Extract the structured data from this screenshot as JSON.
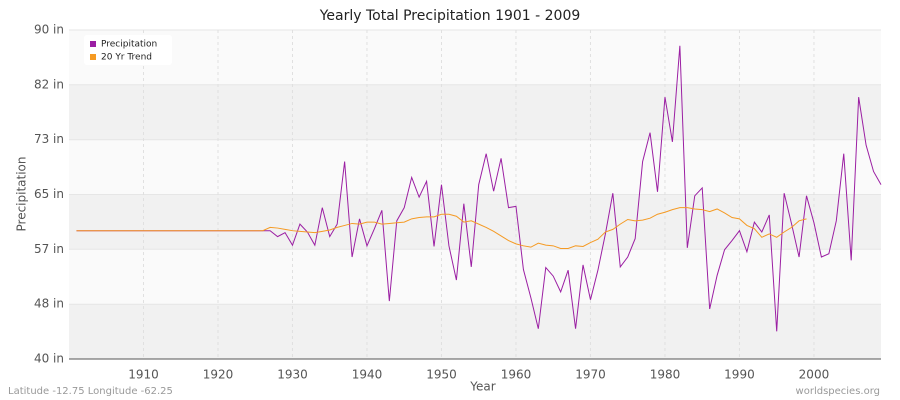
{
  "chart_data": {
    "type": "line",
    "title": "Yearly Total Precipitation 1901 - 2009",
    "x_label": "Year",
    "y_label": "Precipitation",
    "footer_left": "Latitude -12.75 Longitude -62.25",
    "footer_right": "worldspecies.org",
    "legend": "upper left",
    "grid": true,
    "xlim": [
      1900,
      2009
    ],
    "xticks": [
      1910,
      1920,
      1930,
      1940,
      1950,
      1960,
      1970,
      1980,
      1990,
      2000
    ],
    "ylim": [
      40,
      90
    ],
    "yticks": [
      {
        "value": 40,
        "label": "40 in"
      },
      {
        "value": 48.33,
        "label": "48 in"
      },
      {
        "value": 56.67,
        "label": "57 in"
      },
      {
        "value": 65,
        "label": "65 in"
      },
      {
        "value": 73.33,
        "label": "73 in"
      },
      {
        "value": 81.67,
        "label": "82 in"
      },
      {
        "value": 90,
        "label": "90 in"
      }
    ],
    "x": [
      1901,
      1902,
      1903,
      1904,
      1905,
      1906,
      1907,
      1908,
      1909,
      1910,
      1911,
      1912,
      1913,
      1914,
      1915,
      1916,
      1917,
      1918,
      1919,
      1920,
      1921,
      1922,
      1923,
      1924,
      1925,
      1926,
      1927,
      1928,
      1929,
      1930,
      1931,
      1932,
      1933,
      1934,
      1935,
      1936,
      1937,
      1938,
      1939,
      1940,
      1941,
      1942,
      1943,
      1944,
      1945,
      1946,
      1947,
      1948,
      1949,
      1950,
      1951,
      1952,
      1953,
      1954,
      1955,
      1956,
      1957,
      1958,
      1959,
      1960,
      1961,
      1962,
      1963,
      1964,
      1965,
      1966,
      1967,
      1968,
      1969,
      1970,
      1971,
      1972,
      1973,
      1974,
      1975,
      1976,
      1977,
      1978,
      1979,
      1980,
      1981,
      1982,
      1983,
      1984,
      1985,
      1986,
      1987,
      1988,
      1989,
      1990,
      1991,
      1992,
      1993,
      1994,
      1995,
      1996,
      1997,
      1998,
      1999,
      2000,
      2001,
      2002,
      2003,
      2004,
      2005,
      2006,
      2007,
      2008,
      2009
    ],
    "series": [
      {
        "name": "Precipitation",
        "color": "#9b1fa3",
        "values": [
          59.5,
          59.5,
          59.5,
          59.5,
          59.5,
          59.5,
          59.5,
          59.5,
          59.5,
          59.5,
          59.5,
          59.5,
          59.5,
          59.5,
          59.5,
          59.5,
          59.5,
          59.5,
          59.5,
          59.5,
          59.5,
          59.5,
          59.5,
          59.5,
          59.5,
          59.5,
          59.5,
          58.6,
          59.2,
          57.3,
          60.5,
          59.3,
          57.3,
          63.0,
          58.6,
          60.5,
          70.0,
          55.5,
          61.3,
          57.2,
          59.8,
          62.6,
          48.8,
          61.0,
          63.0,
          67.6,
          64.6,
          67.0,
          57.1,
          66.5,
          57.2,
          52.0,
          63.6,
          54.0,
          66.5,
          71.2,
          65.5,
          70.5,
          63.0,
          63.2,
          53.6,
          49.3,
          44.6,
          53.9,
          52.6,
          50.2,
          53.5,
          44.6,
          54.3,
          49.0,
          53.5,
          59.0,
          65.2,
          54.0,
          55.5,
          58.3,
          70.0,
          74.4,
          65.4,
          79.8,
          73.0,
          87.6,
          56.9,
          64.8,
          66.0,
          47.6,
          52.7,
          56.6,
          58.0,
          59.5,
          56.3,
          60.8,
          59.3,
          61.9,
          44.2,
          65.2,
          60.5,
          55.5,
          64.8,
          60.7,
          55.5,
          56.0,
          61.0,
          71.2,
          55.0,
          79.8,
          72.5,
          68.5,
          66.5
        ]
      },
      {
        "name": "20 Yr Trend",
        "color": "#f59a23",
        "values": [
          59.5,
          59.5,
          59.5,
          59.5,
          59.5,
          59.5,
          59.5,
          59.5,
          59.5,
          59.5,
          59.5,
          59.5,
          59.5,
          59.5,
          59.5,
          59.5,
          59.5,
          59.5,
          59.5,
          59.5,
          59.5,
          59.5,
          59.5,
          59.5,
          59.5,
          59.5,
          60.0,
          59.9,
          59.7,
          59.5,
          59.4,
          59.3,
          59.2,
          59.4,
          59.6,
          60.0,
          60.3,
          60.6,
          60.5,
          60.8,
          60.8,
          60.5,
          60.6,
          60.7,
          60.8,
          61.3,
          61.5,
          61.6,
          61.6,
          62.0,
          62.0,
          61.7,
          60.8,
          61.0,
          60.5,
          60.0,
          59.4,
          58.7,
          58.0,
          57.5,
          57.2,
          57.0,
          57.6,
          57.3,
          57.2,
          56.8,
          56.8,
          57.2,
          57.1,
          57.7,
          58.2,
          59.3,
          59.7,
          60.5,
          61.2,
          61.0,
          61.1,
          61.4,
          62.0,
          62.3,
          62.7,
          63.0,
          63.0,
          62.8,
          62.7,
          62.4,
          62.8,
          62.2,
          61.5,
          61.3,
          60.3,
          59.8,
          58.5,
          59.0,
          58.5,
          59.3,
          60.0,
          61.0,
          61.3,
          null,
          null,
          null,
          null,
          null,
          null,
          null,
          null,
          null,
          null
        ]
      }
    ]
  }
}
